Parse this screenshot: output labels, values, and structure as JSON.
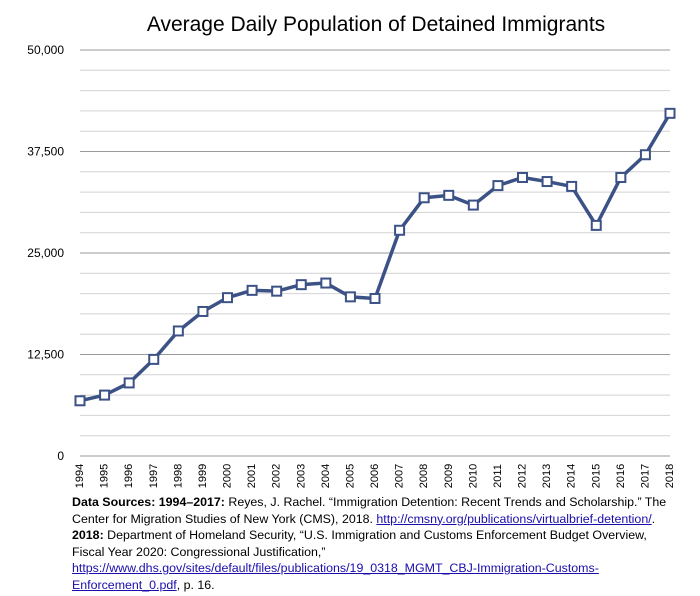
{
  "chart_data": {
    "type": "line",
    "title": "Average Daily Population of Detained Immigrants",
    "xlabel": "",
    "ylabel": "",
    "x": [
      "1994",
      "1995",
      "1996",
      "1997",
      "1998",
      "1999",
      "2000",
      "2001",
      "2002",
      "2003",
      "2004",
      "2005",
      "2006",
      "2007",
      "2008",
      "2009",
      "2010",
      "2011",
      "2012",
      "2013",
      "2014",
      "2015",
      "2016",
      "2017",
      "2018"
    ],
    "series": [
      {
        "values": [
          6800,
          7500,
          9000,
          11900,
          15400,
          17800,
          19500,
          20400,
          20300,
          21100,
          21300,
          19600,
          19400,
          27800,
          31800,
          32100,
          30900,
          33300,
          34300,
          33800,
          33200,
          28400,
          34300,
          37100,
          42200
        ]
      }
    ],
    "ylim": [
      0,
      50000
    ],
    "yticks": [
      0,
      12500,
      25000,
      37500,
      50000
    ],
    "ytick_labels": [
      "0",
      "12,500",
      "25,000",
      "37,500",
      "50,000"
    ],
    "minor_gridline_step": 2500,
    "grid": true,
    "line_color": "#3c5286",
    "marker": "square"
  },
  "sources": {
    "label1": "Data Sources: 1994–2017:",
    "text1": " Reyes, J. Rachel. “Immigration Detention: Recent Trends and Scholarship.” The Center for Migration Studies of New York (CMS), 2018. ",
    "link1": "http://cmsny.org/publications/virtualbrief-detention/",
    "text2": ". ",
    "label2": "2018:",
    "text3": " Department of Homeland Security, “U.S. Immigration and Customs Enforcement Budget Overview, Fiscal Year 2020: Congressional Justification,” ",
    "link2": "https://www.dhs.gov/sites/default/files/publications/19_0318_MGMT_CBJ-Immigration-Customs-Enforcement_0.pdf",
    "text4": ", p. 16."
  }
}
